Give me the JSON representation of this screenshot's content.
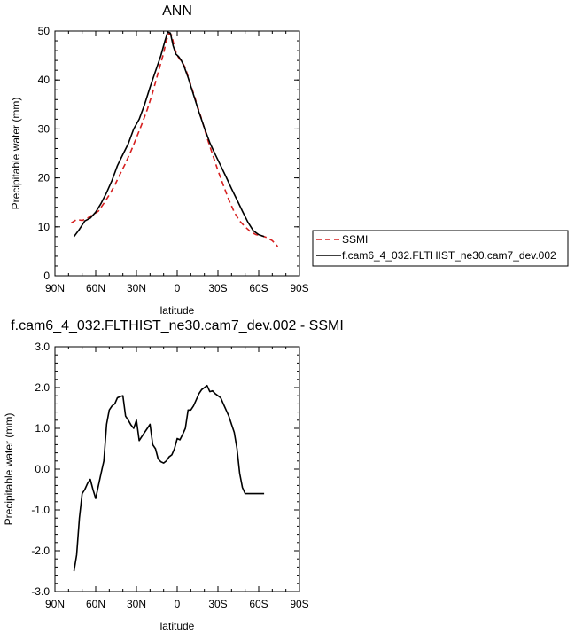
{
  "chart_data": [
    {
      "type": "line",
      "title": "ANN",
      "xlabel": "latitude",
      "ylabel": "Precipitable water (mm)",
      "xlim": [
        -90,
        90
      ],
      "ylim": [
        0,
        50
      ],
      "xticks": [
        -90,
        -60,
        -30,
        0,
        30,
        60,
        90
      ],
      "xtick_labels": [
        "90N",
        "60N",
        "30N",
        "0",
        "30S",
        "60S",
        "90S"
      ],
      "yticks": [
        0,
        10,
        20,
        30,
        40,
        50
      ],
      "ytick_labels": [
        "0",
        "10",
        "20",
        "30",
        "40",
        "50"
      ],
      "legend_placement": "right, outside plot",
      "series": [
        {
          "name": "SSMI",
          "color": "#d62020",
          "dash": "dashed",
          "x": [
            -78,
            -74,
            -70,
            -66,
            -62,
            -58,
            -54,
            -50,
            -46,
            -42,
            -38,
            -34,
            -30,
            -26,
            -22,
            -18,
            -14,
            -10,
            -8,
            -6,
            -4,
            -2,
            0,
            2,
            4,
            6,
            10,
            14,
            18,
            22,
            26,
            30,
            34,
            38,
            42,
            46,
            50,
            54,
            58,
            62,
            66,
            70,
            74
          ],
          "y": [
            10.8,
            11.5,
            11.3,
            11.8,
            12.5,
            13.2,
            14.8,
            16.5,
            18.5,
            20.8,
            23.0,
            25.5,
            28.2,
            31.0,
            34.0,
            37.5,
            41.5,
            45.5,
            48.0,
            49.5,
            49.2,
            46.5,
            45.0,
            44.2,
            43.5,
            42.5,
            39.0,
            35.5,
            32.0,
            28.2,
            24.8,
            21.5,
            18.5,
            15.5,
            13.0,
            11.2,
            10.0,
            9.0,
            8.4,
            8.2,
            7.8,
            7.2,
            6.0
          ]
        },
        {
          "name": "f.cam6_4_032.FLTHIST_ne30.cam7_dev.002",
          "color": "#000000",
          "dash": "solid",
          "x": [
            -76,
            -72,
            -68,
            -64,
            -60,
            -56,
            -52,
            -48,
            -44,
            -40,
            -36,
            -32,
            -28,
            -24,
            -20,
            -16,
            -12,
            -9,
            -7,
            -5,
            -3,
            -1,
            1,
            3,
            5,
            8,
            12,
            16,
            20,
            24,
            28,
            32,
            36,
            40,
            44,
            48,
            52,
            56,
            60,
            64
          ],
          "y": [
            8.0,
            9.5,
            11.2,
            11.8,
            13.0,
            14.8,
            17.0,
            19.5,
            22.5,
            24.8,
            27.0,
            30.0,
            32.0,
            35.0,
            38.5,
            41.8,
            45.0,
            48.0,
            49.8,
            49.6,
            47.0,
            45.3,
            44.8,
            44.0,
            42.8,
            40.5,
            37.0,
            33.5,
            30.2,
            27.2,
            24.8,
            22.5,
            20.2,
            17.8,
            15.5,
            13.2,
            11.0,
            9.2,
            8.4,
            8.0
          ]
        }
      ]
    },
    {
      "type": "line",
      "title": "f.cam6_4_032.FLTHIST_ne30.cam7_dev.002 - SSMI",
      "xlabel": "latitude",
      "ylabel": "Precipitable water (mm)",
      "xlim": [
        -90,
        90
      ],
      "ylim": [
        -3,
        3
      ],
      "xticks": [
        -90,
        -60,
        -30,
        0,
        30,
        60,
        90
      ],
      "xtick_labels": [
        "90N",
        "60N",
        "30N",
        "0",
        "30S",
        "60S",
        "90S"
      ],
      "yticks": [
        -3,
        -2,
        -1,
        0,
        1,
        2,
        3
      ],
      "ytick_labels": [
        "-3.0",
        "-2.0",
        "-1.0",
        "0.0",
        "1.0",
        "2.0",
        "3.0"
      ],
      "series": [
        {
          "color": "#000000",
          "dash": "solid",
          "x": [
            -76,
            -74,
            -72,
            -70,
            -68,
            -66,
            -64,
            -62,
            -60,
            -58,
            -56,
            -54,
            -52,
            -50,
            -48,
            -46,
            -44,
            -42,
            -40,
            -38,
            -36,
            -34,
            -32,
            -30,
            -28,
            -26,
            -24,
            -22,
            -20,
            -18,
            -16,
            -14,
            -12,
            -10,
            -8,
            -6,
            -4,
            -2,
            0,
            2,
            4,
            6,
            8,
            10,
            12,
            14,
            16,
            18,
            20,
            22,
            24,
            26,
            28,
            30,
            32,
            34,
            36,
            38,
            40,
            42,
            44,
            46,
            48,
            50,
            52,
            54,
            56,
            58,
            60,
            62,
            64
          ],
          "y": [
            -2.5,
            -2.1,
            -1.2,
            -0.6,
            -0.5,
            -0.35,
            -0.25,
            -0.5,
            -0.72,
            -0.4,
            -0.1,
            0.2,
            1.1,
            1.45,
            1.55,
            1.6,
            1.75,
            1.78,
            1.8,
            1.3,
            1.2,
            1.08,
            1.0,
            1.2,
            0.7,
            0.8,
            0.9,
            1.0,
            1.1,
            0.6,
            0.5,
            0.25,
            0.18,
            0.15,
            0.2,
            0.3,
            0.35,
            0.5,
            0.75,
            0.72,
            0.85,
            1.0,
            1.45,
            1.45,
            1.55,
            1.7,
            1.85,
            1.95,
            2.0,
            2.05,
            1.9,
            1.92,
            1.85,
            1.8,
            1.75,
            1.6,
            1.45,
            1.3,
            1.1,
            0.9,
            0.5,
            -0.1,
            -0.45,
            -0.6,
            -0.6,
            -0.6,
            -0.6,
            -0.6,
            -0.6,
            -0.6,
            -0.6
          ]
        }
      ]
    }
  ]
}
